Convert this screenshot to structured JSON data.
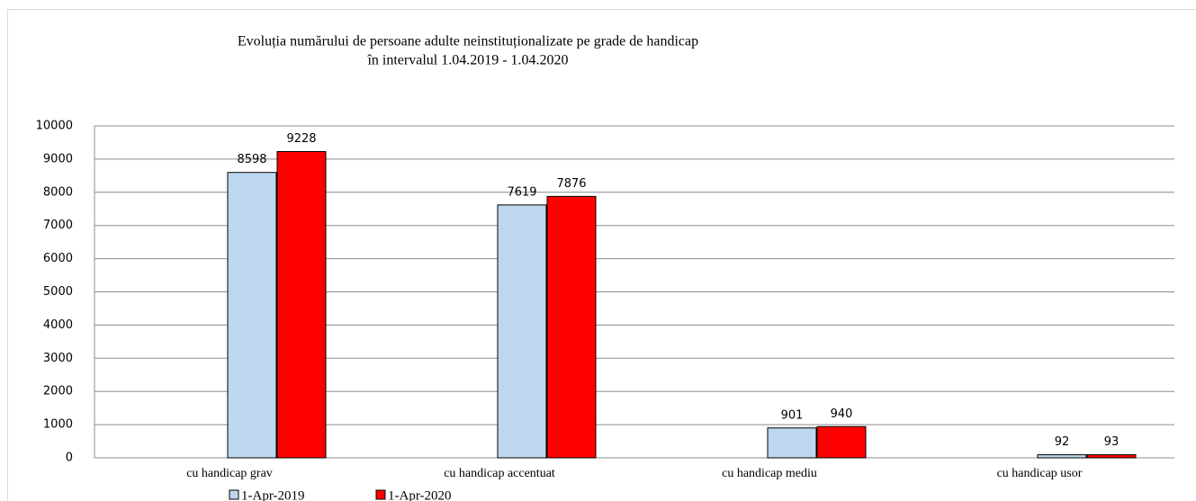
{
  "chart_data": {
    "type": "bar",
    "title": "Evoluția numărului de persoane adulte neinstituționalizate  pe grade de handicap",
    "subtitle": "în intervalul 1.04.2019 - 1.04.2020",
    "categories": [
      "cu handicap grav",
      "cu handicap accentuat",
      "cu handicap mediu",
      "cu handicap usor"
    ],
    "series": [
      {
        "name": "1-Apr-2019",
        "color": "#bdd7ee",
        "values": [
          8598,
          7619,
          901,
          92
        ]
      },
      {
        "name": "1-Apr-2020",
        "color": "#ff0000",
        "values": [
          9228,
          7876,
          940,
          93
        ]
      }
    ],
    "ylim": [
      0,
      10000
    ],
    "yticks": [
      0,
      1000,
      2000,
      3000,
      4000,
      5000,
      6000,
      7000,
      8000,
      9000,
      10000
    ],
    "grid": true,
    "legend": "bottom"
  }
}
